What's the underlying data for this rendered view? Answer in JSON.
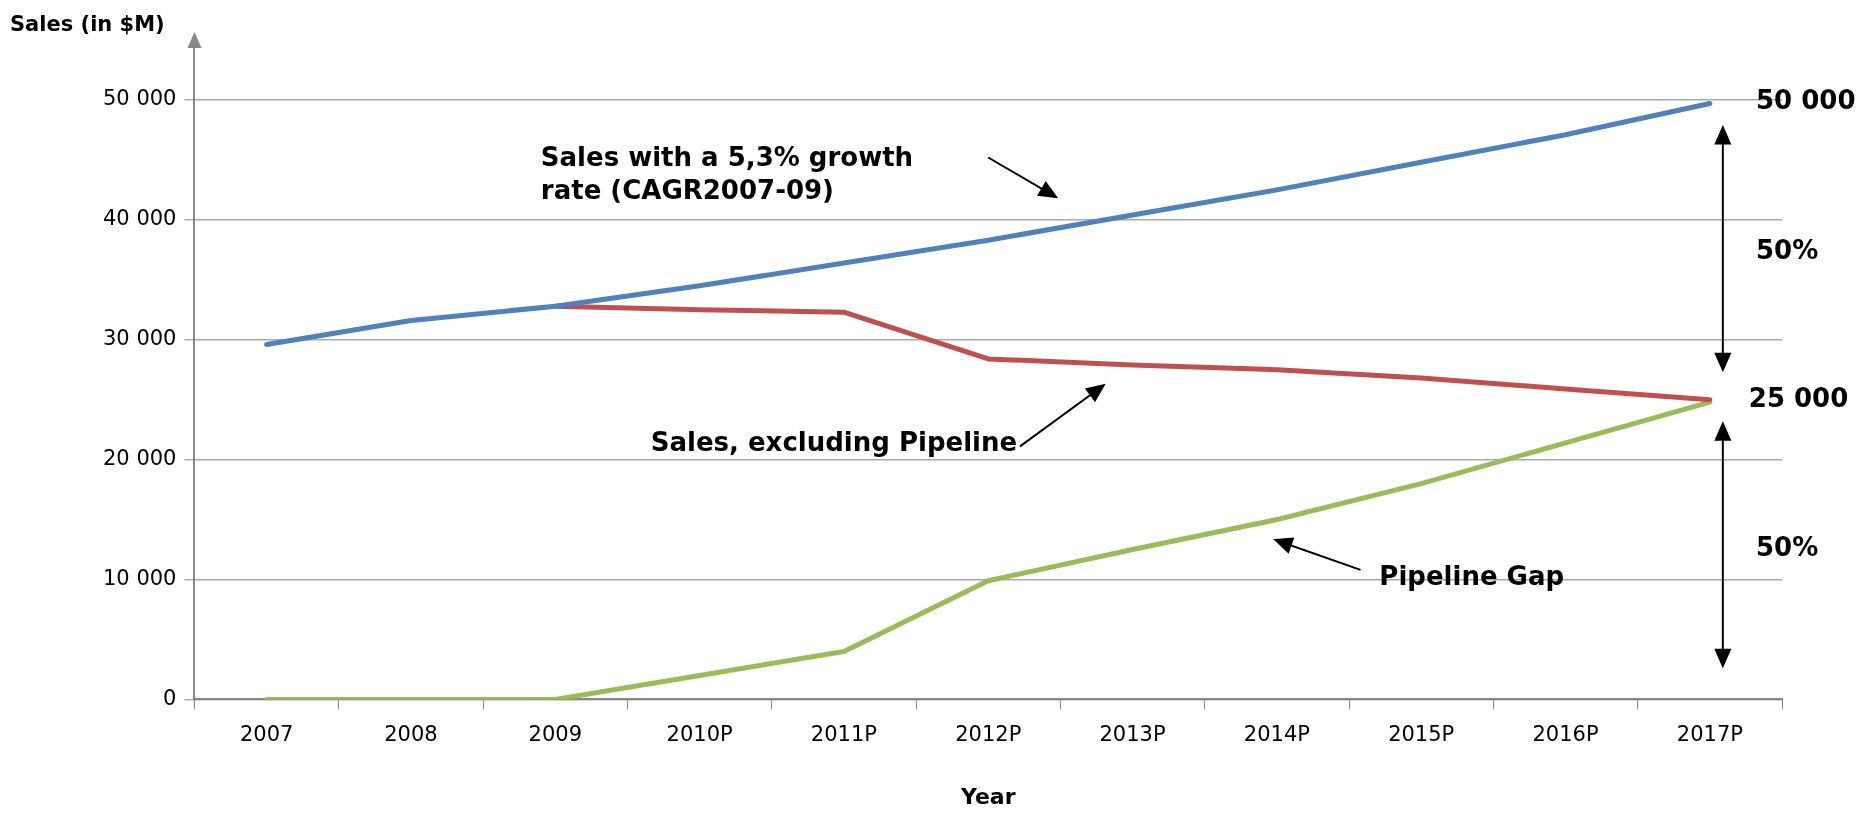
{
  "chart_data": {
    "type": "line",
    "ylabel": "Sales (in $M)",
    "xlabel": "Year",
    "categories": [
      "2007",
      "2008",
      "2009",
      "2010P",
      "2011P",
      "2012P",
      "2013P",
      "2014P",
      "2015P",
      "2016P",
      "2017P"
    ],
    "series": [
      {
        "color": "#4f81bd",
        "values": [
          29600,
          31600,
          32800,
          34500,
          36400,
          38300,
          40400,
          42500,
          44800,
          47100,
          49700
        ]
      },
      {
        "color": "#c0504d",
        "values": [
          null,
          null,
          32800,
          32500,
          32300,
          28400,
          27900,
          27500,
          26800,
          25900,
          25000
        ]
      },
      {
        "color": "#9bbb59",
        "values": [
          0,
          0,
          0,
          2000,
          4000,
          9900,
          12500,
          15000,
          18000,
          21400,
          24800
        ]
      }
    ],
    "ylim": [
      0,
      55000
    ],
    "yticks": [
      {
        "value": 0,
        "label": "0"
      },
      {
        "value": 10000,
        "label": "10 000"
      },
      {
        "value": 20000,
        "label": "20 000"
      },
      {
        "value": 30000,
        "label": "30 000"
      },
      {
        "value": 40000,
        "label": "40 000"
      },
      {
        "value": 50000,
        "label": "50 000"
      }
    ],
    "grid": "y",
    "legend": false,
    "marker": "none",
    "line_style": "solid",
    "annotations": [
      "Sales with a 5,3% growth rate (CAGR2007-09)",
      "Sales, excluding Pipeline",
      "Pipeline Gap",
      "50 000",
      "25 000",
      "50%",
      "50%"
    ]
  }
}
